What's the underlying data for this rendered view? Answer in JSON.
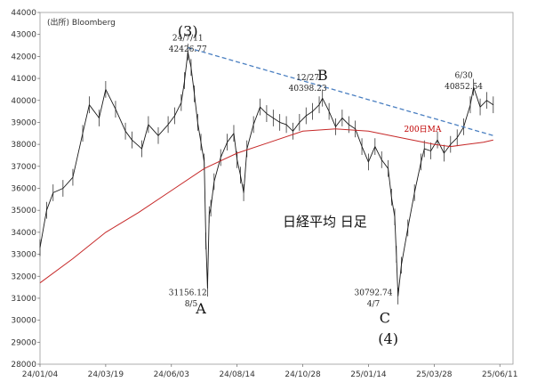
{
  "chart_data": {
    "type": "line",
    "source_label": "(出所) Bloomberg",
    "title": "日経平均 日足",
    "ylim": [
      28000,
      44000
    ],
    "yticks": [
      28000,
      29000,
      30000,
      31000,
      32000,
      33000,
      34000,
      35000,
      36000,
      37000,
      38000,
      39000,
      40000,
      41000,
      42000,
      43000,
      44000
    ],
    "xticks": [
      "24/01/04",
      "24/03/19",
      "24/06/03",
      "24/08/14",
      "24/10/28",
      "25/01/14",
      "25/03/28",
      "25/06/11"
    ],
    "series": [
      {
        "values": [
          [
            0,
            33300
          ],
          [
            4,
            35000
          ],
          [
            8,
            35800
          ],
          [
            14,
            36000
          ],
          [
            20,
            36500
          ],
          [
            26,
            38500
          ],
          [
            30,
            39800
          ],
          [
            36,
            39200
          ],
          [
            40,
            40500
          ],
          [
            46,
            39600
          ],
          [
            52,
            38600
          ],
          [
            56,
            38200
          ],
          [
            62,
            37800
          ],
          [
            66,
            38900
          ],
          [
            72,
            38400
          ],
          [
            78,
            38900
          ],
          [
            82,
            39300
          ],
          [
            86,
            39900
          ],
          [
            88,
            40900
          ],
          [
            90,
            42200
          ],
          [
            92,
            41500
          ],
          [
            94,
            40300
          ],
          [
            96,
            39000
          ],
          [
            98,
            38100
          ],
          [
            100,
            37200
          ],
          [
            101,
            33600
          ],
          [
            102,
            31458
          ],
          [
            103,
            34800
          ],
          [
            104,
            35100
          ],
          [
            106,
            36300
          ],
          [
            110,
            37400
          ],
          [
            114,
            38100
          ],
          [
            118,
            38500
          ],
          [
            120,
            37300
          ],
          [
            122,
            36600
          ],
          [
            124,
            35800
          ],
          [
            126,
            37800
          ],
          [
            130,
            38900
          ],
          [
            134,
            39700
          ],
          [
            138,
            39400
          ],
          [
            142,
            39200
          ],
          [
            146,
            39000
          ],
          [
            150,
            38900
          ],
          [
            154,
            38600
          ],
          [
            158,
            39000
          ],
          [
            162,
            39300
          ],
          [
            166,
            39500
          ],
          [
            170,
            39800
          ],
          [
            172,
            40100
          ],
          [
            176,
            39500
          ],
          [
            180,
            38800
          ],
          [
            184,
            39200
          ],
          [
            188,
            38900
          ],
          [
            192,
            38700
          ],
          [
            196,
            37900
          ],
          [
            200,
            37200
          ],
          [
            204,
            37900
          ],
          [
            208,
            37300
          ],
          [
            212,
            36900
          ],
          [
            214,
            35600
          ],
          [
            216,
            34700
          ],
          [
            217,
            33000
          ],
          [
            218,
            31100
          ],
          [
            220,
            32500
          ],
          [
            224,
            34200
          ],
          [
            228,
            35800
          ],
          [
            232,
            37200
          ],
          [
            234,
            37800
          ],
          [
            238,
            37700
          ],
          [
            242,
            38200
          ],
          [
            246,
            37600
          ],
          [
            250,
            38000
          ],
          [
            254,
            38300
          ],
          [
            258,
            38800
          ],
          [
            262,
            39800
          ],
          [
            264,
            40600
          ],
          [
            268,
            39700
          ],
          [
            272,
            40000
          ],
          [
            276,
            39800
          ]
        ]
      },
      {
        "name": "200日MA",
        "values": [
          [
            0,
            31700
          ],
          [
            20,
            32800
          ],
          [
            40,
            34000
          ],
          [
            60,
            34900
          ],
          [
            80,
            35900
          ],
          [
            100,
            36900
          ],
          [
            120,
            37600
          ],
          [
            140,
            38100
          ],
          [
            160,
            38600
          ],
          [
            180,
            38700
          ],
          [
            200,
            38600
          ],
          [
            220,
            38300
          ],
          [
            240,
            38000
          ],
          [
            250,
            37900
          ],
          [
            260,
            38000
          ],
          [
            270,
            38100
          ],
          [
            276,
            38200
          ]
        ]
      }
    ],
    "trendline": {
      "from": [
        90,
        42400
      ],
      "to": [
        276,
        38400
      ]
    },
    "annotations": [
      {
        "id": "a3-date",
        "x": 90,
        "y": 42726.0,
        "text": "24/7/11"
      },
      {
        "id": "a3-val",
        "x": 90,
        "y": 42226.0,
        "text": "42426.77"
      },
      {
        "id": "a3-lab",
        "x": 90,
        "y": 42925.7,
        "text": "(3)"
      },
      {
        "id": "aB-date",
        "x": 163,
        "y": 40926.0,
        "text": "12/27"
      },
      {
        "id": "aB-val",
        "x": 163,
        "y": 40426.0,
        "text": "40398.23"
      },
      {
        "id": "aB-lab",
        "x": 172,
        "y": 40925.7,
        "text": "B"
      },
      {
        "id": "aE-date",
        "x": 258,
        "y": 41026.0,
        "text": "6/30"
      },
      {
        "id": "aE-val",
        "x": 258,
        "y": 40526.0,
        "text": "40852.54"
      },
      {
        "id": "aA-val",
        "x": 90,
        "y": 31134.0,
        "text": "31156.12"
      },
      {
        "id": "aA-date",
        "x": 92,
        "y": 30634.0,
        "text": "8/5"
      },
      {
        "id": "aA-lab",
        "x": 98,
        "y": 30300.0,
        "text": "A"
      },
      {
        "id": "aC-val",
        "x": 203,
        "y": 31134.0,
        "text": "30792.74"
      },
      {
        "id": "aC-date",
        "x": 203,
        "y": 30634.0,
        "text": "4/7"
      },
      {
        "id": "aC-lab",
        "x": 210,
        "y": 29883.0,
        "text": "C"
      },
      {
        "id": "a4-lab",
        "x": 212,
        "y": 28927.0,
        "text": "(4)"
      },
      {
        "id": "ama-lab",
        "x": 233,
        "y": 38570.0,
        "text": "200日MA"
      }
    ]
  }
}
